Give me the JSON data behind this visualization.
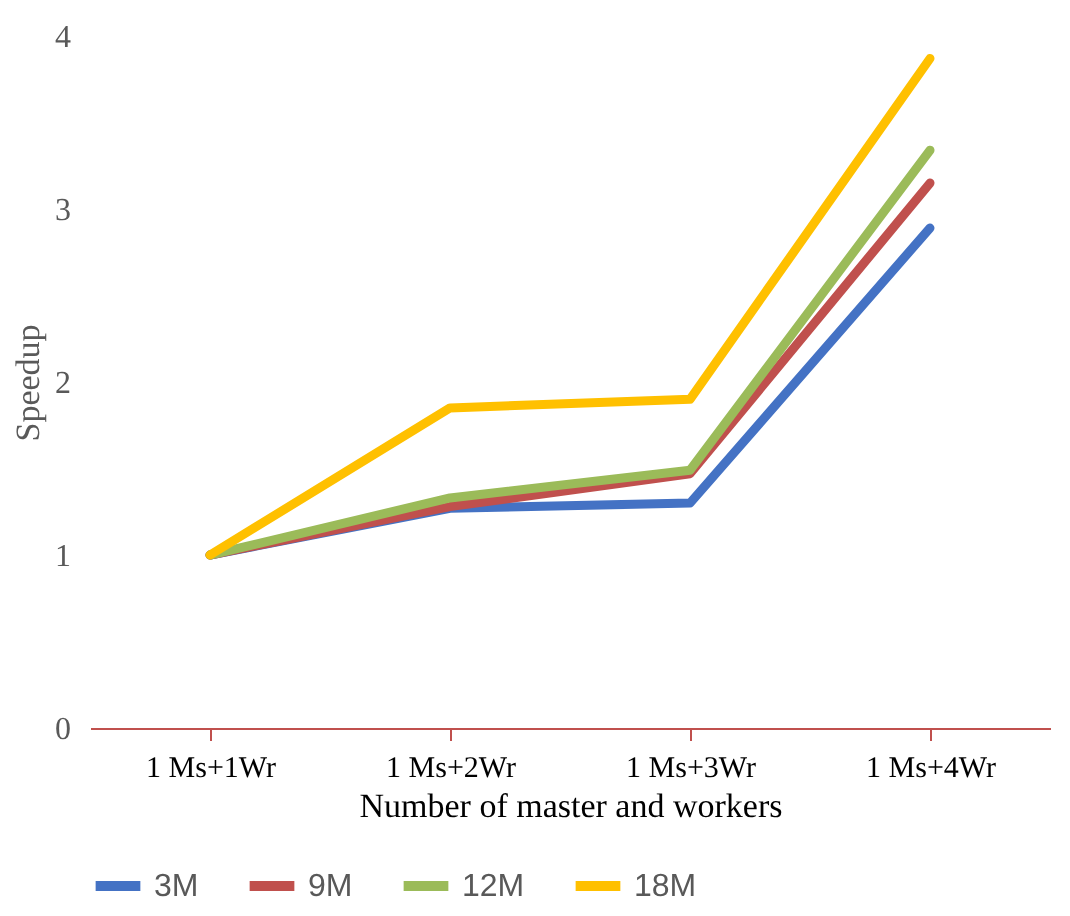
{
  "chart_data": {
    "type": "line",
    "xlabel": "Number of master and workers",
    "ylabel": "Speedup",
    "categories": [
      "1 Ms+1Wr",
      "1 Ms+2Wr",
      "1 Ms+3Wr",
      "1 Ms+4Wr"
    ],
    "series": [
      {
        "name": "3M",
        "color": "#4472c4",
        "values": [
          1,
          1.27,
          1.3,
          2.89
        ]
      },
      {
        "name": "9M",
        "color": "#c0504d",
        "values": [
          1,
          1.28,
          1.47,
          3.15
        ]
      },
      {
        "name": "12M",
        "color": "#9bbb59",
        "values": [
          1,
          1.33,
          1.49,
          3.34
        ]
      },
      {
        "name": "18M",
        "color": "#ffc000",
        "values": [
          1,
          1.85,
          1.9,
          3.87
        ]
      }
    ],
    "ylim": [
      0,
      4
    ],
    "yticks": [
      0,
      1,
      2,
      3,
      4
    ],
    "grid": false,
    "legend": "bottom",
    "marker": "none",
    "line_style": "solid"
  }
}
